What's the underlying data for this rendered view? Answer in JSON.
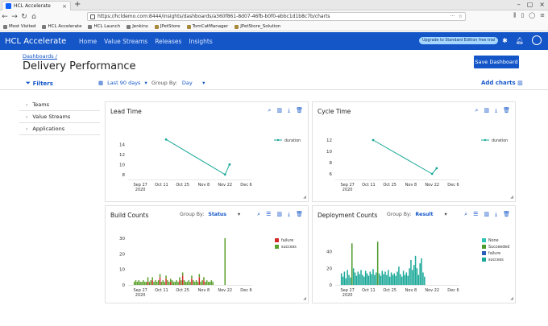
{
  "browser": {
    "tab_title": "HCL Accelerate",
    "url": "https://hcldemo.com:8444/insights/dashboards/a360f861-8d07-46fb-b0f0-ebbc1d1b8c7b/charts",
    "bookmarks": [
      "Most Visited",
      "HCL Accelerate",
      "HCL Launch",
      "Jenkins",
      "JPetStore",
      "TomCatManager",
      "JPetStore_Solution"
    ]
  },
  "app": {
    "brand": "HCL Accelerate",
    "nav": [
      "Home",
      "Value Streams",
      "Releases",
      "Insights"
    ],
    "upgrade": "Upgrade to Standard Edition free trial"
  },
  "page": {
    "breadcrumb": "Dashboards /",
    "title": "Delivery Performance",
    "save_label": "Save Dashboard"
  },
  "toolbar": {
    "filters": "Filters",
    "date_range": "Last 90 days",
    "group_by_label": "Group By:",
    "group_by_value": "Day",
    "add_charts": "Add charts"
  },
  "sidebar": {
    "items": [
      "Teams",
      "Value Streams",
      "Applications"
    ]
  },
  "colors": {
    "accent": "#1456c8",
    "teal": "#1aa898",
    "failure": "#d42a2a",
    "success": "#5aa02c",
    "none": "#2ec4b6",
    "succeeded": "#4c9a2a",
    "dep_failure": "#2b5fb8",
    "dep_success": "#1aa898"
  },
  "cards": {
    "lead_time": {
      "title": "Lead Time"
    },
    "cycle_time": {
      "title": "Cycle Time"
    },
    "build_counts": {
      "title": "Build Counts",
      "group_label": "Group By:",
      "group_value": "Status"
    },
    "deployment_counts": {
      "title": "Deployment Counts",
      "group_label": "Group By:",
      "group_value": "Result"
    }
  },
  "chart_data": [
    {
      "id": "lead_time",
      "type": "line",
      "title": "Lead Time",
      "xticks": [
        "Sep 27\n2020",
        "Oct 11",
        "Oct 25",
        "Nov 8",
        "Nov 22",
        "Dec 6"
      ],
      "xrange": [
        "2020-09-20",
        "2020-12-10"
      ],
      "ylim": [
        7,
        16
      ],
      "yticks": [
        8,
        10,
        12,
        14
      ],
      "series": [
        {
          "name": "duration",
          "x": [
            "2020-10-14",
            "2020-11-22",
            "2020-11-25"
          ],
          "values": [
            15,
            8,
            10
          ]
        }
      ],
      "legend": "top-right"
    },
    {
      "id": "cycle_time",
      "type": "line",
      "title": "Cycle Time",
      "xticks": [
        "Sep 27\n2020",
        "Oct 11",
        "Oct 25",
        "Nov 8",
        "Nov 22",
        "Dec 6"
      ],
      "xrange": [
        "2020-09-20",
        "2020-12-10"
      ],
      "ylim": [
        5,
        13
      ],
      "yticks": [
        6,
        8,
        10,
        12
      ],
      "series": [
        {
          "name": "duration",
          "x": [
            "2020-10-14",
            "2020-11-22",
            "2020-11-25"
          ],
          "values": [
            12,
            6,
            7
          ]
        }
      ],
      "legend": "top-right"
    },
    {
      "id": "build_counts",
      "type": "bar",
      "stacked": true,
      "title": "Build Counts",
      "xticks": [
        "Sep 27\n2020",
        "Oct 11",
        "Oct 25",
        "Nov 8",
        "Nov 22",
        "Dec 6"
      ],
      "xrange": [
        "2020-09-20",
        "2020-12-10"
      ],
      "ylim": [
        0,
        32
      ],
      "yticks": [
        0,
        10,
        20,
        30
      ],
      "start": "2020-09-23",
      "series": [
        {
          "name": "failure",
          "values": [
            0,
            0,
            0,
            0,
            0,
            0,
            0,
            0,
            0,
            2,
            0,
            0,
            3,
            0,
            0,
            0,
            0,
            5,
            0,
            0,
            0,
            4,
            0,
            0,
            2,
            0,
            0,
            0,
            0,
            0,
            3,
            0,
            6,
            0,
            0,
            0,
            0,
            0,
            4,
            0,
            0,
            0,
            0,
            5,
            0,
            0,
            3,
            0,
            0,
            0,
            0,
            0,
            0,
            0,
            0,
            0,
            0,
            0,
            0,
            0,
            0,
            0,
            0
          ]
        },
        {
          "name": "success",
          "values": [
            2,
            3,
            2,
            3,
            2,
            2,
            3,
            2,
            2,
            3,
            2,
            3,
            2,
            2,
            3,
            2,
            3,
            2,
            2,
            3,
            2,
            2,
            3,
            2,
            2,
            3,
            2,
            2,
            3,
            2,
            2,
            3,
            2,
            3,
            2,
            2,
            3,
            2,
            2,
            3,
            2,
            3,
            2,
            2,
            2,
            3,
            2,
            2,
            3,
            2,
            2,
            3,
            2,
            0,
            0,
            0,
            0,
            0,
            0,
            0,
            30,
            0,
            0
          ]
        }
      ],
      "legend": "top-right"
    },
    {
      "id": "deployment_counts",
      "type": "bar",
      "stacked": true,
      "title": "Deployment Counts",
      "xticks": [
        "Sep 27\n2020",
        "Oct 11",
        "Oct 25",
        "Nov 8",
        "Nov 22",
        "Dec 6"
      ],
      "xrange": [
        "2020-09-20",
        "2020-12-10"
      ],
      "ylim": [
        0,
        60
      ],
      "yticks": [
        0,
        20,
        40
      ],
      "start": "2020-09-23",
      "series": [
        {
          "name": "None",
          "values": [
            0,
            0,
            0,
            0,
            0,
            0,
            0,
            0,
            0,
            0,
            0,
            0,
            0,
            0,
            0,
            0,
            0,
            0,
            0,
            0,
            0,
            0,
            0,
            0,
            0,
            0,
            0,
            0,
            0,
            0,
            0,
            0,
            0,
            0,
            0,
            0,
            0,
            0,
            0,
            0,
            0,
            0,
            0,
            0,
            0,
            0,
            0,
            0,
            0,
            0,
            0,
            0,
            0,
            0,
            0,
            0,
            0,
            0,
            0,
            0,
            0,
            0,
            0
          ]
        },
        {
          "name": "Succeeded",
          "values": [
            0,
            0,
            0,
            0,
            0,
            0,
            0,
            50,
            0,
            0,
            0,
            0,
            0,
            0,
            0,
            0,
            0,
            0,
            0,
            0,
            0,
            0,
            0,
            0,
            52,
            0,
            0,
            0,
            0,
            0,
            0,
            0,
            0,
            0,
            0,
            0,
            0,
            0,
            0,
            0,
            0,
            0,
            0,
            0,
            0,
            0,
            0,
            0,
            0,
            0,
            0,
            0,
            0,
            0,
            0,
            0,
            0,
            0,
            0,
            0,
            0,
            0,
            0
          ]
        },
        {
          "name": "failure",
          "values": [
            0,
            0,
            0,
            0,
            0,
            0,
            0,
            0,
            0,
            0,
            0,
            0,
            0,
            0,
            0,
            0,
            0,
            0,
            0,
            0,
            0,
            0,
            0,
            0,
            0,
            0,
            0,
            0,
            0,
            0,
            0,
            0,
            0,
            0,
            0,
            0,
            0,
            0,
            0,
            0,
            0,
            0,
            0,
            0,
            0,
            0,
            0,
            0,
            0,
            0,
            0,
            0,
            0,
            0,
            0,
            0,
            0,
            0,
            0,
            0,
            0,
            0,
            0
          ]
        },
        {
          "name": "success",
          "values": [
            14,
            10,
            16,
            8,
            18,
            12,
            9,
            0,
            20,
            15,
            11,
            16,
            13,
            18,
            12,
            10,
            17,
            14,
            11,
            16,
            13,
            19,
            12,
            15,
            0,
            14,
            11,
            17,
            13,
            16,
            12,
            18,
            10,
            15,
            12,
            14,
            11,
            16,
            22,
            13,
            10,
            17,
            12,
            15,
            11,
            20,
            30,
            18,
            24,
            35,
            20,
            12,
            26,
            32,
            15,
            10,
            0,
            0,
            0,
            0,
            0,
            0,
            0
          ]
        }
      ],
      "legend": "top-right"
    }
  ]
}
